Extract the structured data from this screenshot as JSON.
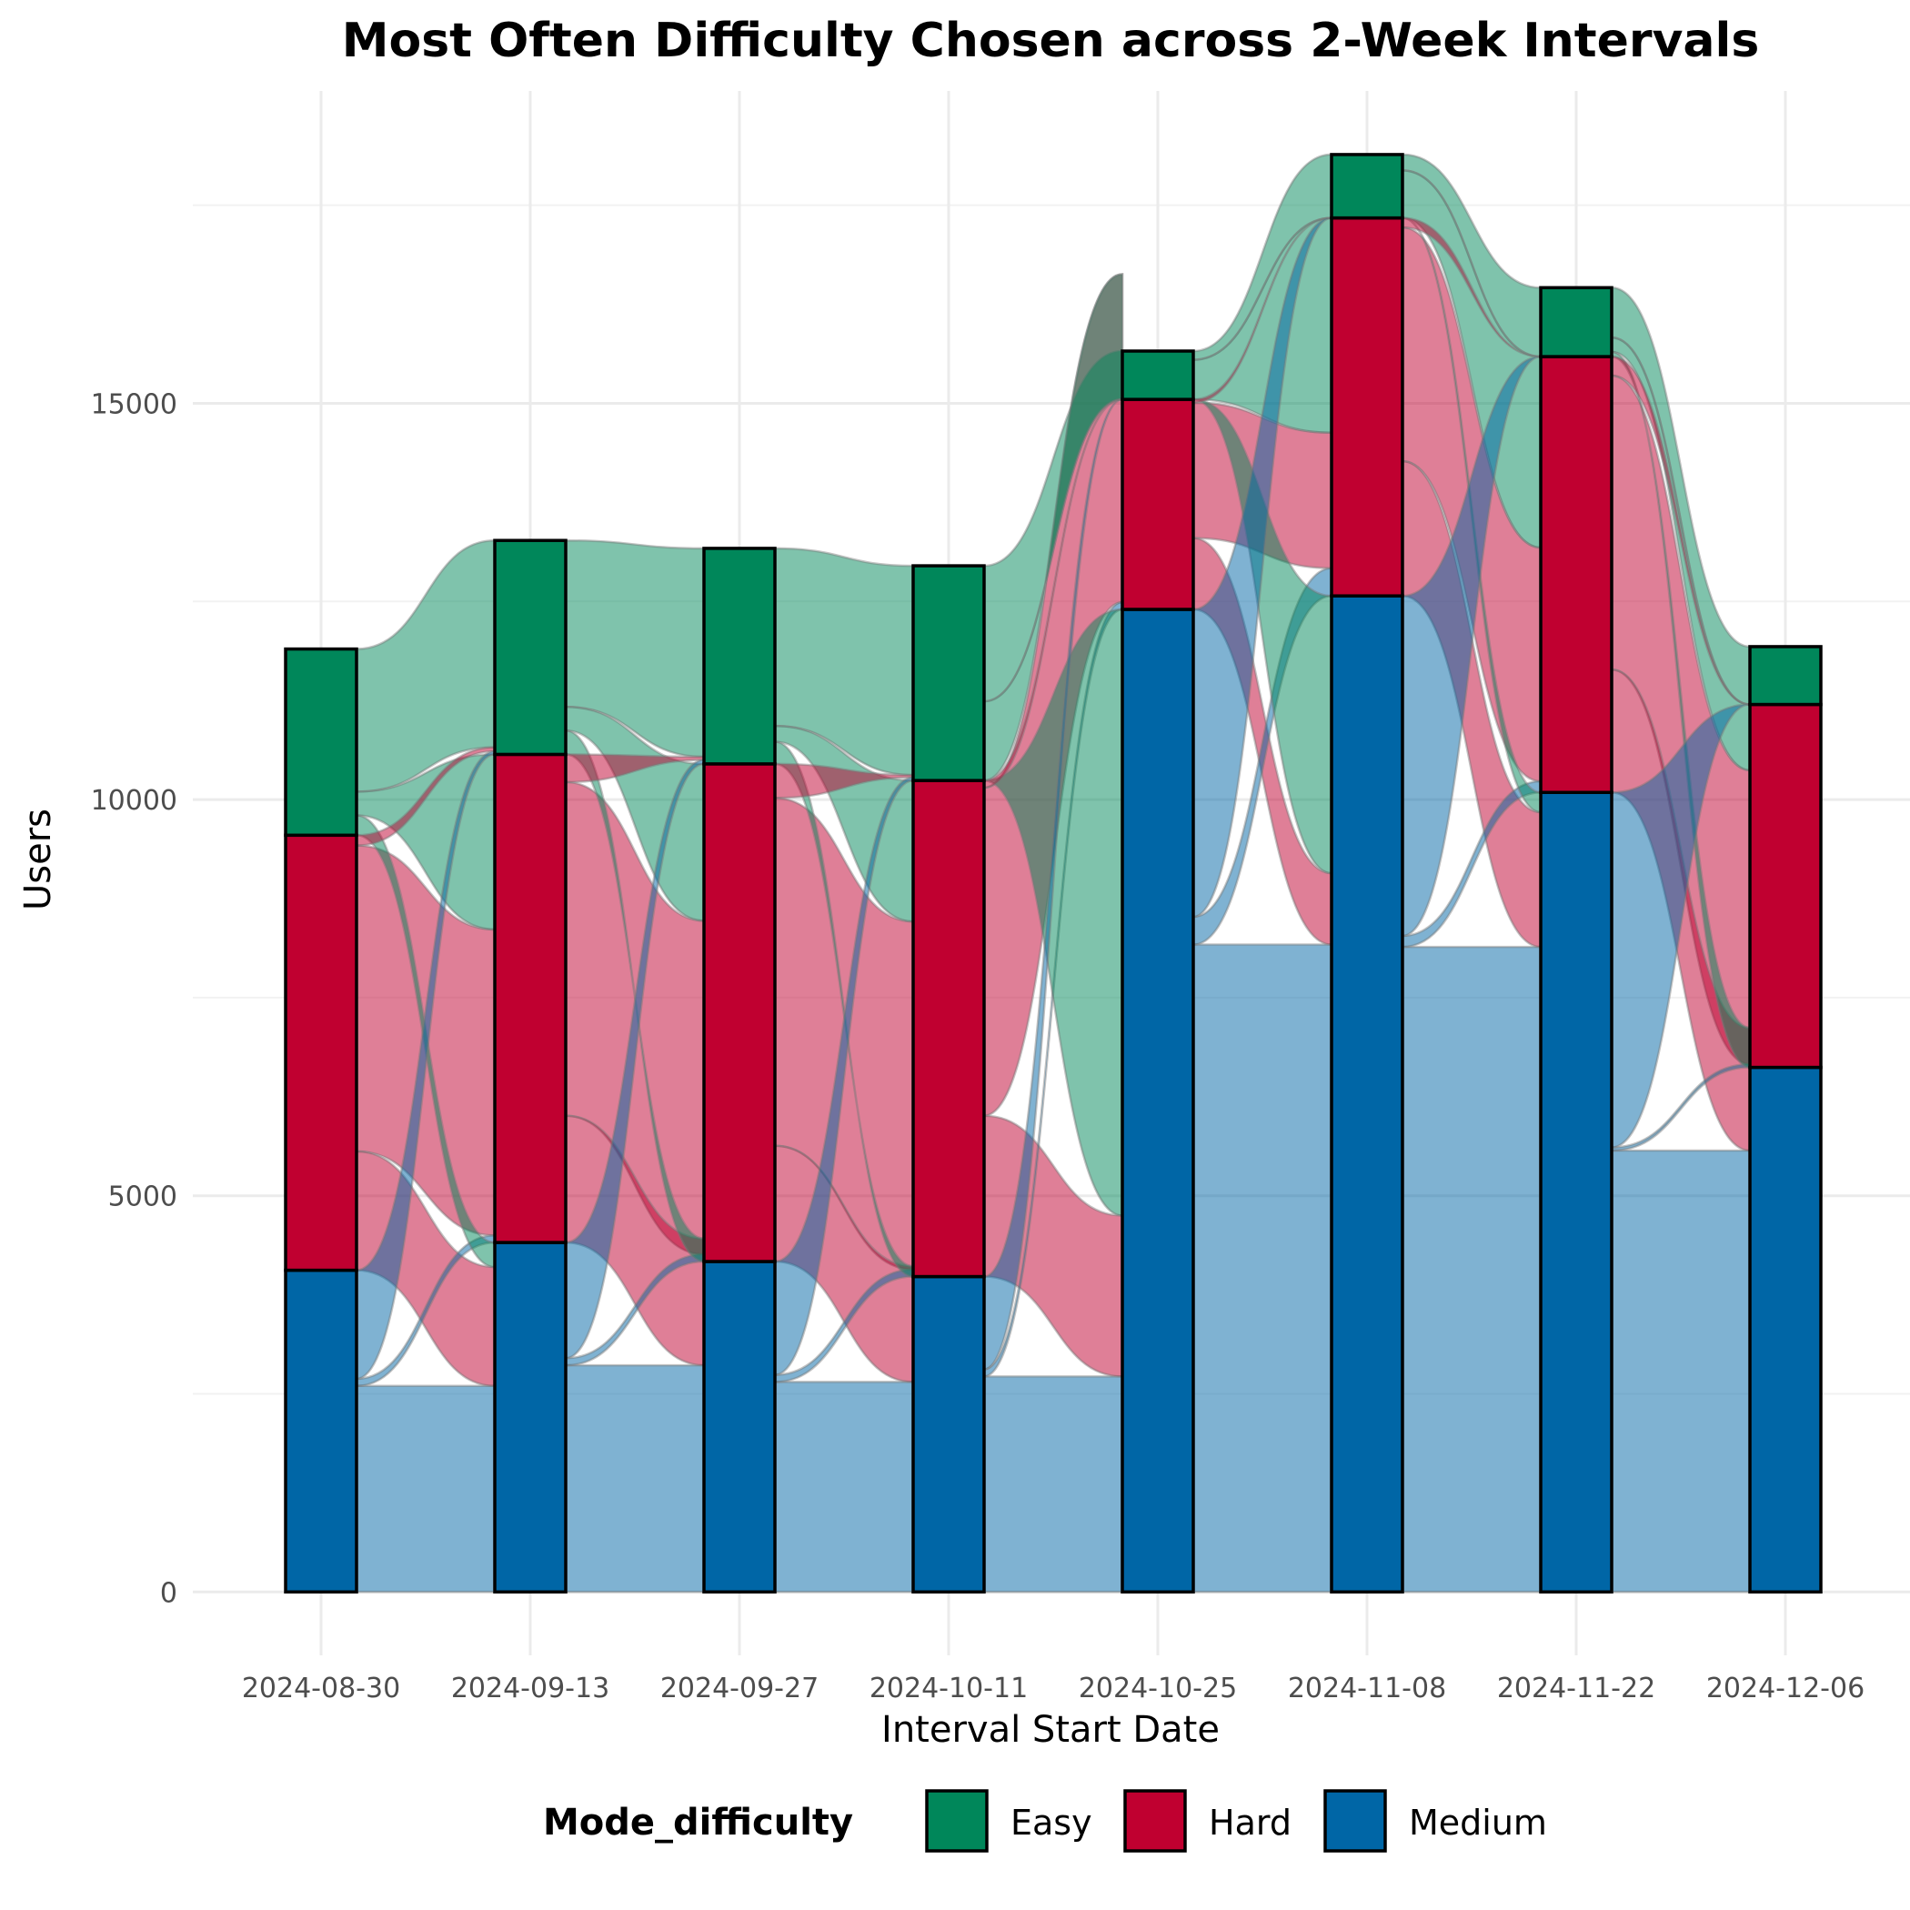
{
  "chart_data": {
    "type": "bar",
    "subtype": "alluvial-stacked-bar",
    "title": "Most Often Difficulty Chosen across 2-Week Intervals",
    "xlabel": "Interval Start Date",
    "ylabel": "Users",
    "ylim": [
      -800,
      19000
    ],
    "yticks": [
      0,
      5000,
      10000,
      15000
    ],
    "grid": true,
    "legend": {
      "title": "Mode_difficulty",
      "position": "bottom"
    },
    "stack_order": [
      "Medium",
      "Hard",
      "Easy"
    ],
    "colors": {
      "Easy": "#00875A",
      "Hard": "#C00030",
      "Medium": "#0066A6"
    },
    "categories": [
      "2024-08-30",
      "2024-09-13",
      "2024-09-27",
      "2024-10-11",
      "2024-10-25",
      "2024-11-08",
      "2024-11-22",
      "2024-12-06"
    ],
    "series": [
      {
        "name": "Medium",
        "values": [
          4060,
          4410,
          4170,
          3980,
          12400,
          12570,
          10090,
          6620
        ]
      },
      {
        "name": "Hard",
        "values": [
          5490,
          6160,
          6280,
          6260,
          2650,
          4770,
          5500,
          4580
        ]
      },
      {
        "name": "Easy",
        "values": [
          2350,
          2700,
          2720,
          2710,
          610,
          800,
          870,
          730
        ]
      }
    ],
    "flows": {
      "stay": [
        {
          "from": "Medium",
          "values": [
            2600,
            2860,
            2650,
            2720,
            8170,
            8140,
            5570
          ]
        },
        {
          "from": "Hard",
          "values": [
            3860,
            4210,
            4390,
            4140,
            1710,
            2950,
            3710
          ]
        },
        {
          "from": "Easy",
          "values": [
            1550,
            1650,
            1780,
            1870,
            100,
            260,
            460
          ]
        }
      ],
      "easy_to_medium": [
        250,
        300,
        280,
        0,
        0,
        0,
        60
      ],
      "easy_to_hard": [
        300,
        300,
        200,
        1000,
        500,
        600,
        180
      ],
      "hard_to_medium": [
        1500,
        1600,
        1460,
        2030,
        900,
        1700,
        1550
      ],
      "medium_to_hard": [
        90,
        90,
        90,
        90,
        350,
        140,
        40
      ],
      "hard_to_easy": [
        50,
        40,
        30,
        0,
        0,
        0,
        0
      ],
      "medium_to_easy": [
        40,
        50,
        40,
        0,
        0,
        0,
        0
      ]
    }
  }
}
